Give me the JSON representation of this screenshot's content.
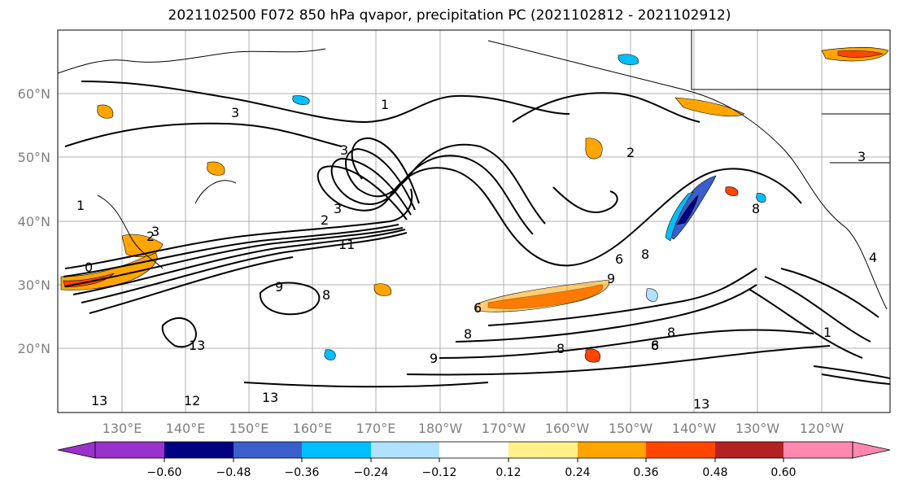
{
  "title": "2021102500 F072 850 hPa qvapor, precipitation PC (2021102812 - 2021102912)",
  "map": {
    "lat_labels": [
      "60°N",
      "50°N",
      "40°N",
      "30°N",
      "20°N"
    ],
    "lon_labels": [
      "130°E",
      "140°E",
      "150°E",
      "160°E",
      "170°E",
      "180°W",
      "170°W",
      "160°W",
      "150°W",
      "140°W",
      "130°W",
      "120°W"
    ],
    "lon_range": [
      121,
      252
    ],
    "lat_range": [
      10,
      70
    ],
    "contour_color": "#000000",
    "grid_color": "#b0b0b0",
    "contour_labels": [
      "3",
      "3",
      "3",
      "2",
      "2",
      "1",
      "1",
      "2",
      "3",
      "11",
      "0",
      "9",
      "8",
      "6",
      "9",
      "8",
      "8",
      "8",
      "13",
      "13",
      "13",
      "6",
      "8",
      "9",
      "1",
      "8",
      "8",
      "4",
      "3",
      "13",
      "12",
      "6"
    ]
  },
  "colorbar": {
    "colors": [
      "#9932cc",
      "#000080",
      "#3a5fcd",
      "#00bfff",
      "#b0e2ff",
      "#ffffff",
      "#fff08a",
      "#ffa500",
      "#ff4500",
      "#b22222",
      "#ff88b0"
    ],
    "tick_labels": [
      "−0.60",
      "−0.48",
      "−0.36",
      "−0.24",
      "−0.12",
      "0.12",
      "0.24",
      "0.36",
      "0.48",
      "0.60"
    ]
  }
}
